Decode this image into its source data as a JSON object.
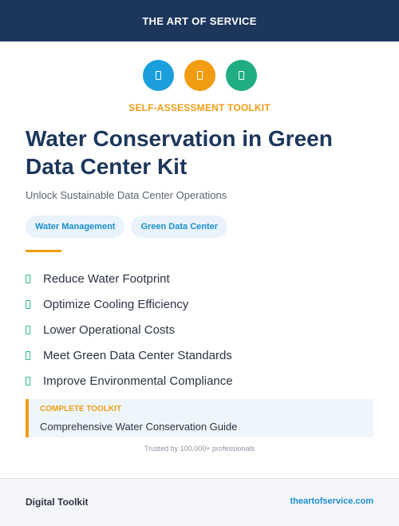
{
  "header": {
    "brand": "THE ART OF SERVICE"
  },
  "icons": [
    {
      "name": "document-icon",
      "color": "#1b9fdc"
    },
    {
      "name": "document-icon",
      "color": "#f29c12"
    },
    {
      "name": "document-icon",
      "color": "#20ad83"
    }
  ],
  "eyebrow": "SELF-ASSESSMENT TOOLKIT",
  "title": "Water Conservation in Green Data Center Kit",
  "subtitle": "Unlock Sustainable Data Center Operations",
  "tags": [
    "Water Management",
    "Green Data Center"
  ],
  "benefits": [
    {
      "label": "Reduce Water Footprint",
      "icon": "check-icon"
    },
    {
      "label": "Optimize Cooling Efficiency",
      "icon": "check-icon"
    },
    {
      "label": "Lower Operational Costs",
      "icon": "check-icon"
    },
    {
      "label": "Meet Green Data Center Standards",
      "icon": "check-icon"
    },
    {
      "label": "Improve Environmental Compliance",
      "icon": "check-icon"
    }
  ],
  "callout": {
    "label": "COMPLETE TOOLKIT",
    "text": "Comprehensive Water Conservation Guide"
  },
  "trust": "Trusted by 100,000+ professionals",
  "footer": {
    "left": "Digital Toolkit",
    "right": "theartofservice.com"
  },
  "colors": {
    "navy": "#1c365c",
    "orange": "#f29c12",
    "blue": "#1a8fd0",
    "green": "#2ebd85"
  }
}
